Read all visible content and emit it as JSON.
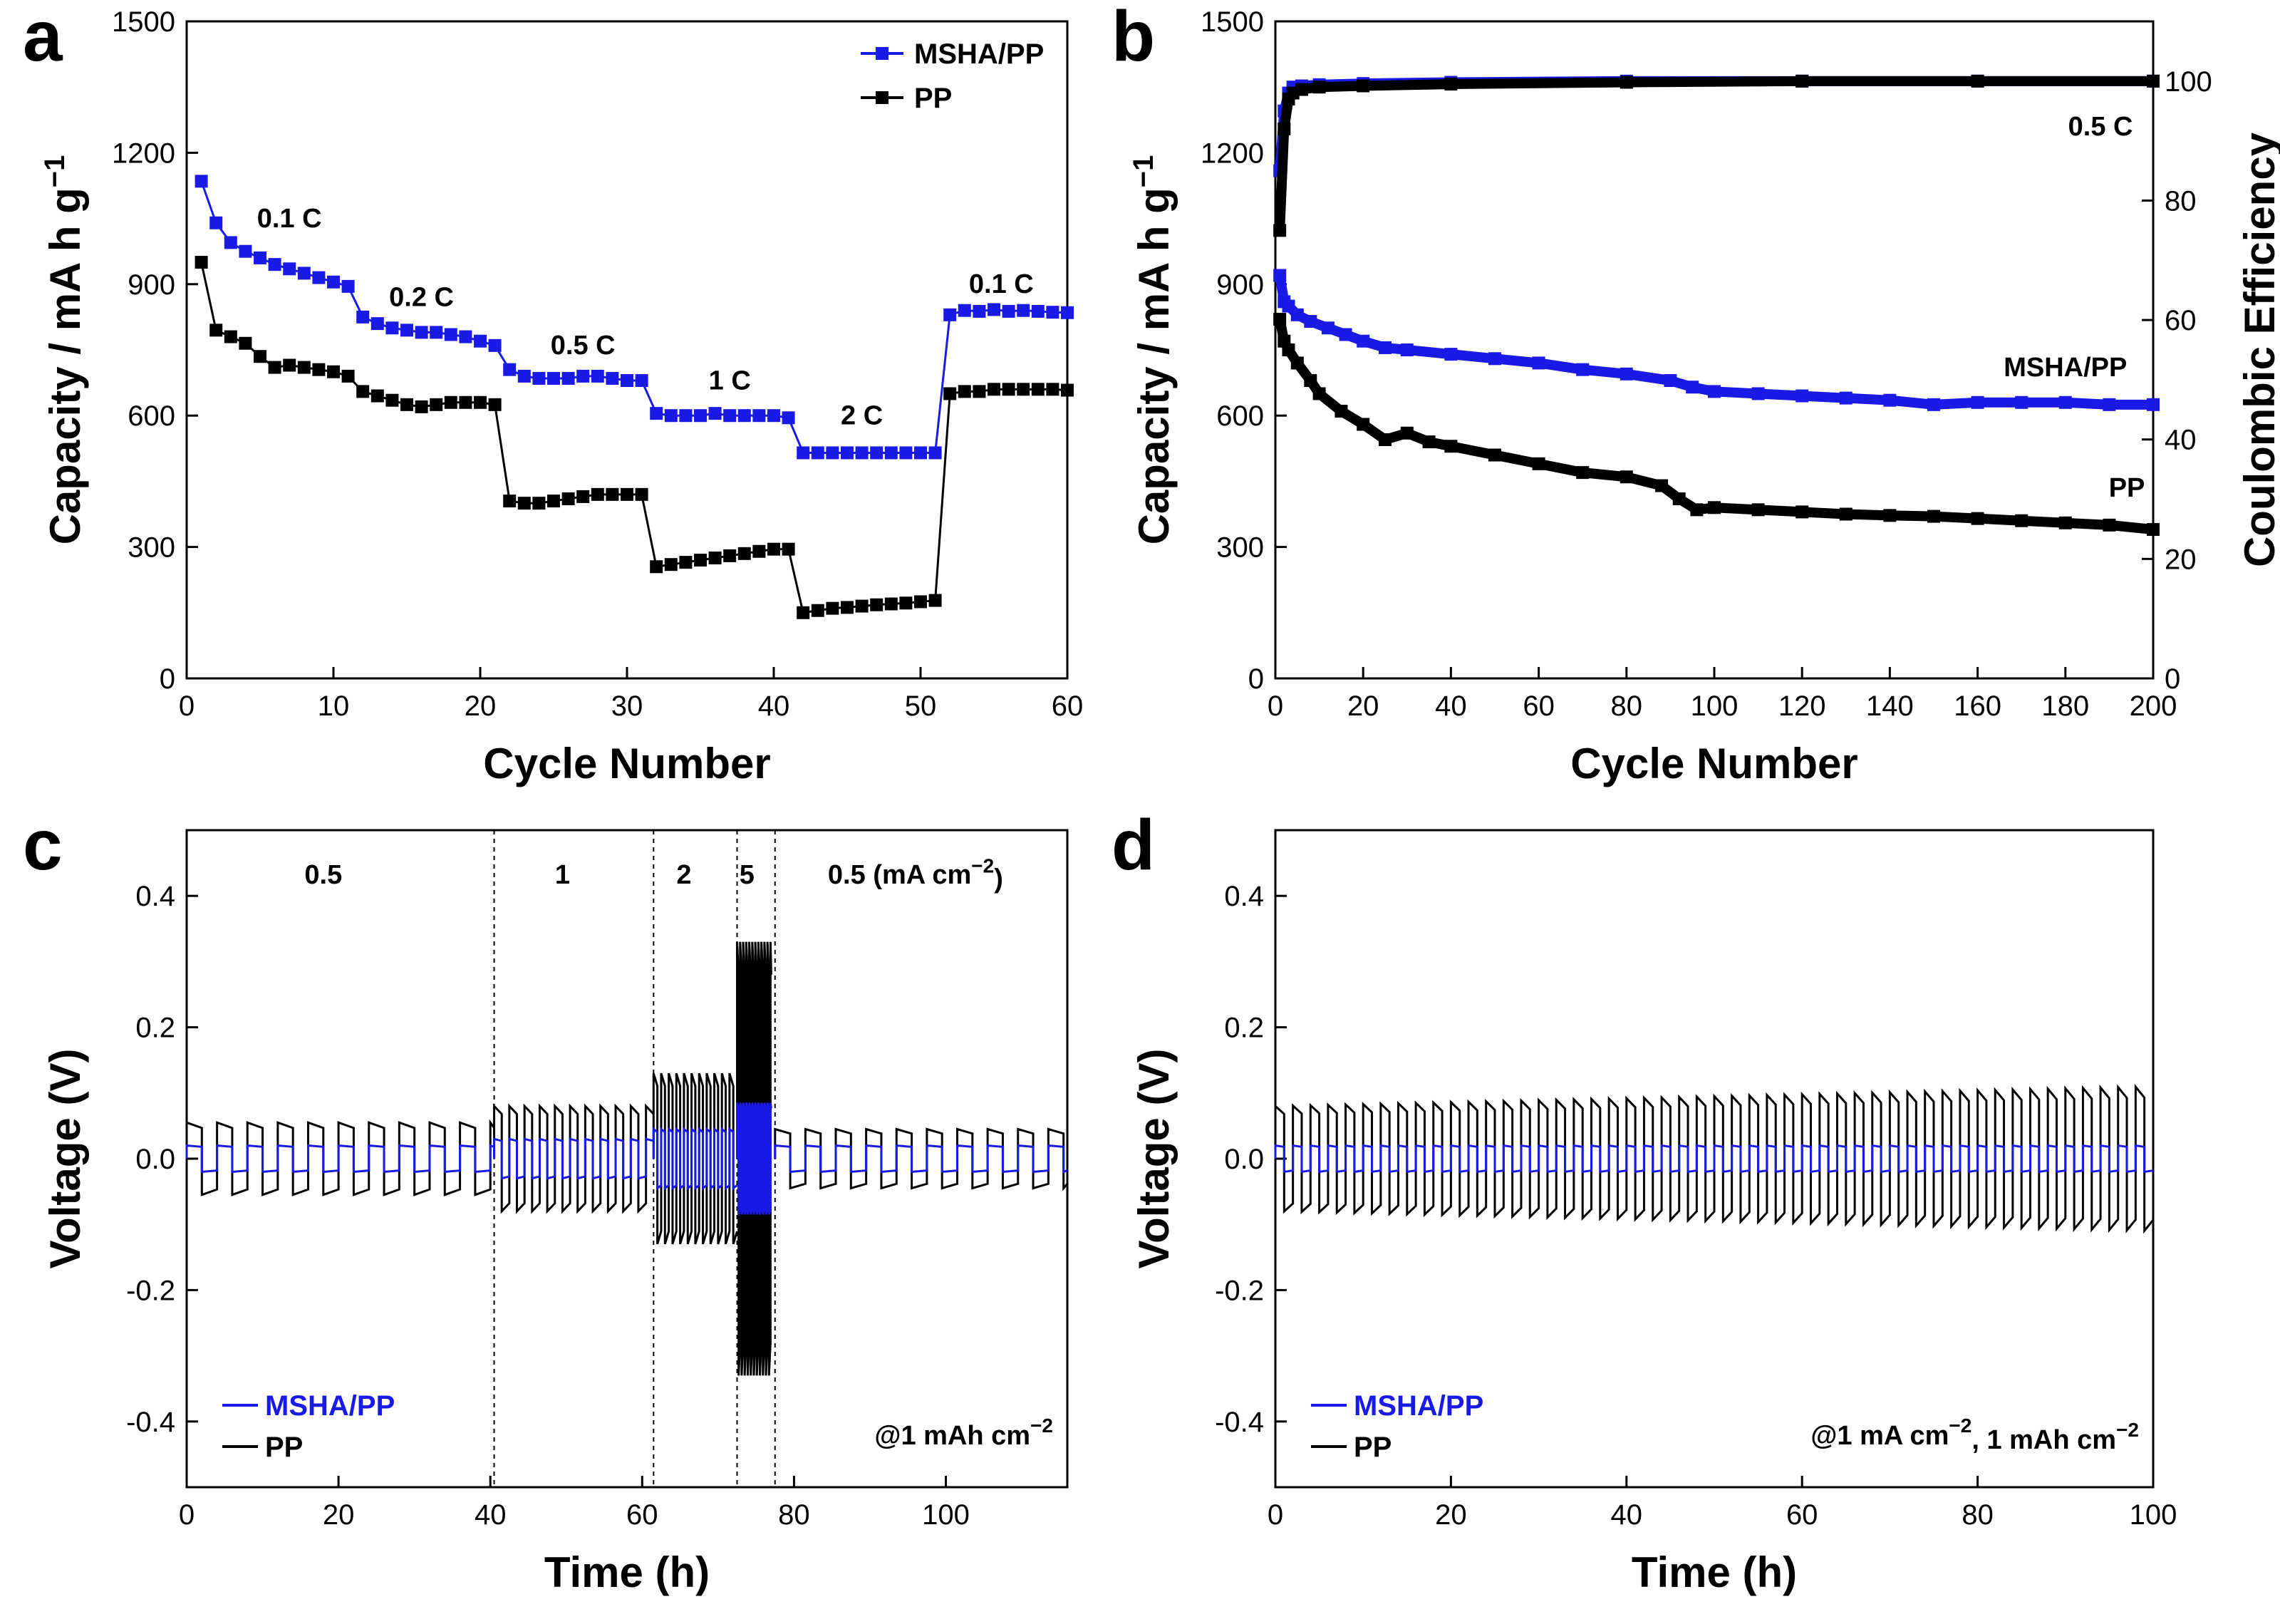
{
  "colors": {
    "msha": "#1a1ae6",
    "pp": "#000000"
  },
  "chart_data": [
    {
      "id": "a",
      "type": "scatter",
      "panel_letter": "a",
      "xlabel": "Cycle Number",
      "ylabel": "Capacity / mA h g",
      "ylabel_sup": "−1",
      "xlim": [
        0,
        60
      ],
      "ylim": [
        0,
        1500
      ],
      "xticks": [
        0,
        10,
        20,
        30,
        40,
        50,
        60
      ],
      "yticks": [
        0,
        300,
        600,
        900,
        1200,
        1500
      ],
      "legend": [
        "MSHA/PP",
        "PP"
      ],
      "legend_position": "top-right",
      "annotations": [
        {
          "text": "0.1 C",
          "x": 7,
          "y": 1030
        },
        {
          "text": "0.2 C",
          "x": 16,
          "y": 850
        },
        {
          "text": "0.5 C",
          "x": 27,
          "y": 740
        },
        {
          "text": "1 C",
          "x": 37,
          "y": 660
        },
        {
          "text": "2 C",
          "x": 46,
          "y": 580
        },
        {
          "text": "0.1 C",
          "x": 55.5,
          "y": 880
        }
      ],
      "series": [
        {
          "name": "MSHA/PP",
          "color": "#1a1ae6",
          "x": [
            1,
            2,
            3,
            4,
            5,
            6,
            7,
            8,
            9,
            10,
            11,
            12,
            13,
            14,
            15,
            16,
            17,
            18,
            19,
            20,
            21,
            22,
            23,
            24,
            25,
            26,
            27,
            28,
            29,
            30,
            31,
            32,
            33,
            34,
            35,
            36,
            37,
            38,
            39,
            40,
            41,
            42,
            43,
            44,
            45,
            46,
            47,
            48,
            49,
            50,
            51,
            52,
            53,
            54,
            55,
            56,
            57,
            58,
            59,
            60
          ],
          "y": [
            1135,
            1040,
            995,
            975,
            960,
            945,
            935,
            925,
            915,
            905,
            895,
            825,
            810,
            800,
            795,
            790,
            790,
            785,
            780,
            770,
            760,
            705,
            690,
            685,
            685,
            685,
            690,
            690,
            685,
            680,
            680,
            605,
            600,
            600,
            600,
            605,
            600,
            600,
            600,
            600,
            595,
            515,
            515,
            515,
            515,
            515,
            515,
            515,
            515,
            515,
            515,
            830,
            840,
            838,
            842,
            838,
            840,
            838,
            836,
            835
          ]
        },
        {
          "name": "PP",
          "color": "#000000",
          "x": [
            1,
            2,
            3,
            4,
            5,
            6,
            7,
            8,
            9,
            10,
            11,
            12,
            13,
            14,
            15,
            16,
            17,
            18,
            19,
            20,
            21,
            22,
            23,
            24,
            25,
            26,
            27,
            28,
            29,
            30,
            31,
            32,
            33,
            34,
            35,
            36,
            37,
            38,
            39,
            40,
            41,
            42,
            43,
            44,
            45,
            46,
            47,
            48,
            49,
            50,
            51,
            52,
            53,
            54,
            55,
            56,
            57,
            58,
            59,
            60
          ],
          "y": [
            950,
            795,
            780,
            765,
            735,
            710,
            715,
            710,
            705,
            700,
            690,
            655,
            645,
            635,
            625,
            620,
            625,
            630,
            630,
            630,
            625,
            405,
            400,
            400,
            405,
            410,
            415,
            420,
            420,
            420,
            420,
            255,
            260,
            265,
            270,
            275,
            280,
            285,
            290,
            295,
            295,
            150,
            155,
            160,
            162,
            165,
            168,
            170,
            172,
            175,
            178,
            650,
            655,
            655,
            660,
            660,
            660,
            660,
            660,
            658
          ]
        }
      ]
    },
    {
      "id": "b",
      "type": "scatter",
      "panel_letter": "b",
      "xlabel": "Cycle Number",
      "ylabel": "Capacity / mA h g",
      "ylabel_sup": "−1",
      "y2label": "Coulombic Efficiency",
      "xlim": [
        0,
        200
      ],
      "ylim": [
        0,
        1500
      ],
      "y2lim": [
        0,
        110
      ],
      "xticks": [
        0,
        20,
        40,
        60,
        80,
        100,
        120,
        140,
        160,
        180,
        200
      ],
      "yticks": [
        0,
        300,
        600,
        900,
        1200,
        1500
      ],
      "y2ticks": [
        0,
        20,
        40,
        60,
        80,
        100
      ],
      "annotations": [
        {
          "text": "0.5 C",
          "x": 188,
          "y": 1240
        },
        {
          "text": "MSHA/PP",
          "x": 180,
          "y": 690
        },
        {
          "text": "PP",
          "x": 194,
          "y": 415
        }
      ],
      "series": [
        {
          "name": "MSHA/PP capacity",
          "color": "#1a1ae6",
          "x": [
            1,
            2,
            3,
            5,
            8,
            12,
            16,
            20,
            25,
            30,
            40,
            50,
            60,
            70,
            80,
            90,
            95,
            100,
            110,
            120,
            130,
            140,
            150,
            160,
            170,
            180,
            190,
            200
          ],
          "y": [
            920,
            860,
            850,
            830,
            815,
            800,
            785,
            770,
            755,
            750,
            740,
            730,
            720,
            705,
            695,
            680,
            665,
            655,
            650,
            645,
            640,
            635,
            625,
            630,
            630,
            630,
            625,
            625
          ]
        },
        {
          "name": "PP capacity",
          "color": "#000000",
          "x": [
            1,
            2,
            3,
            5,
            8,
            10,
            15,
            20,
            25,
            30,
            35,
            40,
            50,
            60,
            70,
            80,
            88,
            92,
            96,
            100,
            110,
            120,
            130,
            140,
            150,
            160,
            170,
            180,
            190,
            200
          ],
          "y": [
            820,
            770,
            750,
            720,
            680,
            650,
            610,
            580,
            545,
            560,
            540,
            530,
            510,
            490,
            470,
            460,
            440,
            410,
            385,
            390,
            385,
            380,
            375,
            372,
            370,
            365,
            360,
            355,
            350,
            340
          ]
        },
        {
          "name": "MSHA/PP efficiency",
          "color": "#1a1ae6",
          "axis": "y2",
          "x": [
            1,
            2,
            3,
            4,
            6,
            10,
            20,
            40,
            80,
            120,
            160,
            200
          ],
          "y": [
            85,
            95,
            98,
            99,
            99.2,
            99.4,
            99.6,
            99.8,
            100,
            100,
            100,
            100
          ]
        },
        {
          "name": "PP efficiency",
          "color": "#000000",
          "axis": "y2",
          "x": [
            1,
            2,
            3,
            4,
            6,
            10,
            20,
            40,
            80,
            120,
            160,
            200
          ],
          "y": [
            75,
            92,
            97,
            98,
            98.6,
            99,
            99.2,
            99.5,
            99.8,
            100,
            100,
            100
          ]
        }
      ]
    },
    {
      "id": "c",
      "type": "line",
      "panel_letter": "c",
      "xlabel": "Time (h)",
      "ylabel": "Voltage (V)",
      "xlim": [
        0,
        116
      ],
      "ylim": [
        -0.5,
        0.5
      ],
      "xticks": [
        0,
        20,
        40,
        60,
        80,
        100
      ],
      "yticks": [
        -0.4,
        -0.2,
        0.0,
        0.2,
        0.4
      ],
      "ytick_labels": [
        "-0.4",
        "-0.2",
        "0.0",
        "0.2",
        "0.4"
      ],
      "legend": [
        "MSHA/PP",
        "PP"
      ],
      "legend_position": "bottom-left",
      "note": "@1 mAh cm",
      "note_sup": "−2",
      "dividers": [
        40.5,
        61.5,
        72.5,
        77.5
      ],
      "region_labels": [
        {
          "text": "0.5",
          "x": 18
        },
        {
          "text": "1",
          "x": 49.5
        },
        {
          "text": "2",
          "x": 65.5
        },
        {
          "text": "5",
          "x": 73.8
        },
        {
          "text": "0.5 (mA cm",
          "x": 96,
          "sup": "−2",
          "suffix": ")"
        }
      ],
      "segments": [
        {
          "t_start": 0,
          "t_end": 40.5,
          "period": 4,
          "pp_amp": 0.055,
          "msha_amp": 0.02
        },
        {
          "t_start": 40.5,
          "t_end": 61.5,
          "period": 2,
          "pp_amp": 0.08,
          "msha_amp": 0.03
        },
        {
          "t_start": 61.5,
          "t_end": 72.5,
          "period": 1,
          "pp_amp": 0.13,
          "msha_amp": 0.045
        },
        {
          "t_start": 72.5,
          "t_end": 77,
          "period": 0.4,
          "pp_amp": 0.33,
          "msha_amp": 0.085
        },
        {
          "t_start": 77.5,
          "t_end": 116,
          "period": 4,
          "pp_amp": 0.045,
          "msha_amp": 0.02
        }
      ]
    },
    {
      "id": "d",
      "type": "line",
      "panel_letter": "d",
      "xlabel": "Time (h)",
      "ylabel": "Voltage (V)",
      "xlim": [
        0,
        100
      ],
      "ylim": [
        -0.5,
        0.5
      ],
      "xticks": [
        0,
        20,
        40,
        60,
        80,
        100
      ],
      "yticks": [
        -0.4,
        -0.2,
        0.0,
        0.2,
        0.4
      ],
      "ytick_labels": [
        "-0.4",
        "-0.2",
        "0.0",
        "0.2",
        "0.4"
      ],
      "legend": [
        "MSHA/PP",
        "PP"
      ],
      "legend_position": "bottom-left",
      "note": "@1 mA cm",
      "note_sup": "−2",
      "note_part2": ", 1 mAh cm",
      "note_sup2": "−2",
      "segments": [
        {
          "t_start": 0,
          "t_end": 100,
          "period": 2,
          "pp_amp_start": 0.08,
          "pp_amp_end": 0.11,
          "msha_amp": 0.02
        }
      ]
    }
  ]
}
